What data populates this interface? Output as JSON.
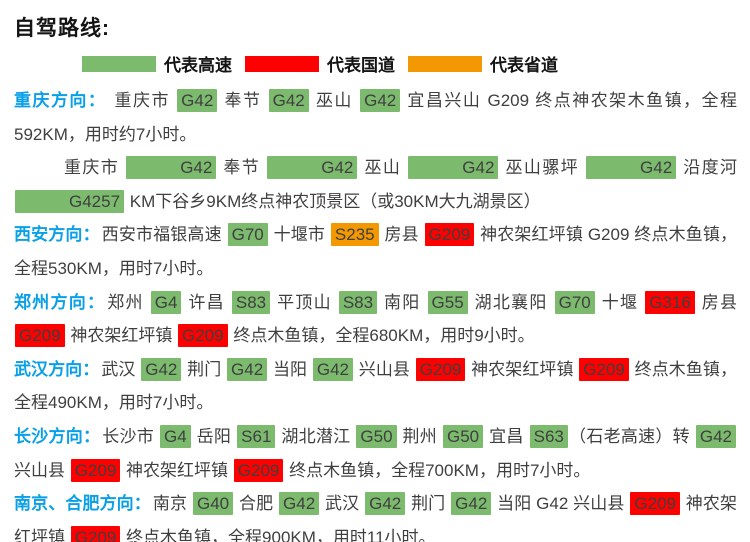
{
  "page_title": "自驾路线:",
  "palette": {
    "green": "#7cbb6e",
    "red": "#fe0000",
    "orange": "#f39800",
    "heading_blue": "#0aa0e8",
    "body_text": "#3f3f3f"
  },
  "legend": [
    {
      "label": "代表高速",
      "color": "green"
    },
    {
      "label": "代表国道",
      "color": "red"
    },
    {
      "label": "代表省道",
      "color": "orange"
    }
  ],
  "routes": [
    {
      "heading": "重庆方向：",
      "indent": false,
      "segments": [
        {
          "t": " 重庆市 "
        },
        {
          "b": "G42",
          "c": "green"
        },
        {
          "t": " 奉节 "
        },
        {
          "b": "G42",
          "c": "green"
        },
        {
          "t": " 巫山 "
        },
        {
          "b": "G42",
          "c": "green"
        },
        {
          "t": " 宜昌兴山 G209 终点神农架木鱼镇，全程592KM，用时约7小时。"
        }
      ]
    },
    {
      "heading": "",
      "indent": true,
      "segments": [
        {
          "t": "重庆市 "
        },
        {
          "b": "G42",
          "c": "green"
        },
        {
          "t": " 奉节 "
        },
        {
          "b": "G42",
          "c": "green"
        },
        {
          "t": " 巫山 "
        },
        {
          "b": "G42",
          "c": "green"
        },
        {
          "t": " 巫山骡坪 "
        },
        {
          "b": "G42",
          "c": "green"
        },
        {
          "t": " 沿度河 "
        },
        {
          "b": "G4257",
          "c": "green"
        },
        {
          "t": " KM下谷乡9KM终点神农顶景区（或30KM大九湖景区）"
        }
      ]
    },
    {
      "heading": "西安方向：",
      "indent": false,
      "segments": [
        {
          "t": "西安市福银高速 "
        },
        {
          "b": "G70",
          "c": "green"
        },
        {
          "t": " 十堰市 "
        },
        {
          "b": "S235",
          "c": "orange"
        },
        {
          "t": " 房县 "
        },
        {
          "b": "G209",
          "c": "red"
        },
        {
          "t": " 神农架红坪镇 G209 终点木鱼镇，全程530KM，用时7小时。"
        }
      ]
    },
    {
      "heading": "郑州方向：",
      "indent": false,
      "segments": [
        {
          "t": "郑州 "
        },
        {
          "b": "G4",
          "c": "green"
        },
        {
          "t": " 许昌 "
        },
        {
          "b": "S83",
          "c": "green"
        },
        {
          "t": " 平顶山 "
        },
        {
          "b": "S83",
          "c": "green"
        },
        {
          "t": " 南阳 "
        },
        {
          "b": "G55",
          "c": "green"
        },
        {
          "t": " 湖北襄阳 "
        },
        {
          "b": "G70",
          "c": "green"
        },
        {
          "t": " 十堰 "
        },
        {
          "b": "G316",
          "c": "red"
        },
        {
          "t": " 房县 "
        },
        {
          "b": "G209",
          "c": "red"
        },
        {
          "t": " 神农架红坪镇 "
        },
        {
          "b": "G209",
          "c": "red"
        },
        {
          "t": " 终点木鱼镇，全程680KM，用时9小时。"
        }
      ]
    },
    {
      "heading": "武汉方向：",
      "indent": false,
      "segments": [
        {
          "t": "武汉 "
        },
        {
          "b": "G42",
          "c": "green"
        },
        {
          "t": " 荆门 "
        },
        {
          "b": "G42",
          "c": "green"
        },
        {
          "t": " 当阳 "
        },
        {
          "b": "G42",
          "c": "green"
        },
        {
          "t": " 兴山县 "
        },
        {
          "b": "G209",
          "c": "red"
        },
        {
          "t": " 神农架红坪镇 "
        },
        {
          "b": "G209",
          "c": "red"
        },
        {
          "t": " 终点木鱼镇，全程490KM，用时7小时。"
        }
      ]
    },
    {
      "heading": "长沙方向：",
      "indent": false,
      "segments": [
        {
          "t": "长沙市 "
        },
        {
          "b": "G4",
          "c": "green"
        },
        {
          "t": " 岳阳 "
        },
        {
          "b": "S61",
          "c": "green"
        },
        {
          "t": " 湖北潜江 "
        },
        {
          "b": "G50",
          "c": "green"
        },
        {
          "t": " 荆州 "
        },
        {
          "b": "G50",
          "c": "green"
        },
        {
          "t": " 宜昌 "
        },
        {
          "b": "S63",
          "c": "green"
        },
        {
          "t": "（石老高速）转 "
        },
        {
          "b": "G42",
          "c": "green"
        },
        {
          "t": " 兴山县 "
        },
        {
          "b": "G209",
          "c": "red"
        },
        {
          "t": " 神农架红坪镇 "
        },
        {
          "b": "G209",
          "c": "red"
        },
        {
          "t": " 终点木鱼镇，全程700KM，用时7小时。"
        }
      ]
    },
    {
      "heading": "南京、合肥方向：",
      "indent": false,
      "segments": [
        {
          "t": "南京 "
        },
        {
          "b": "G40",
          "c": "green"
        },
        {
          "t": " 合肥 "
        },
        {
          "b": "G42",
          "c": "green"
        },
        {
          "t": " 武汉 "
        },
        {
          "b": "G42",
          "c": "green"
        },
        {
          "t": " 荆门 "
        },
        {
          "b": "G42",
          "c": "green"
        },
        {
          "t": " 当阳  G42  兴山县 "
        },
        {
          "b": "G209",
          "c": "red"
        },
        {
          "t": " 神农架红坪镇 "
        },
        {
          "b": "G209",
          "c": "red"
        },
        {
          "t": " 终点木鱼镇，全程900KM，用时11小时。"
        }
      ]
    }
  ]
}
